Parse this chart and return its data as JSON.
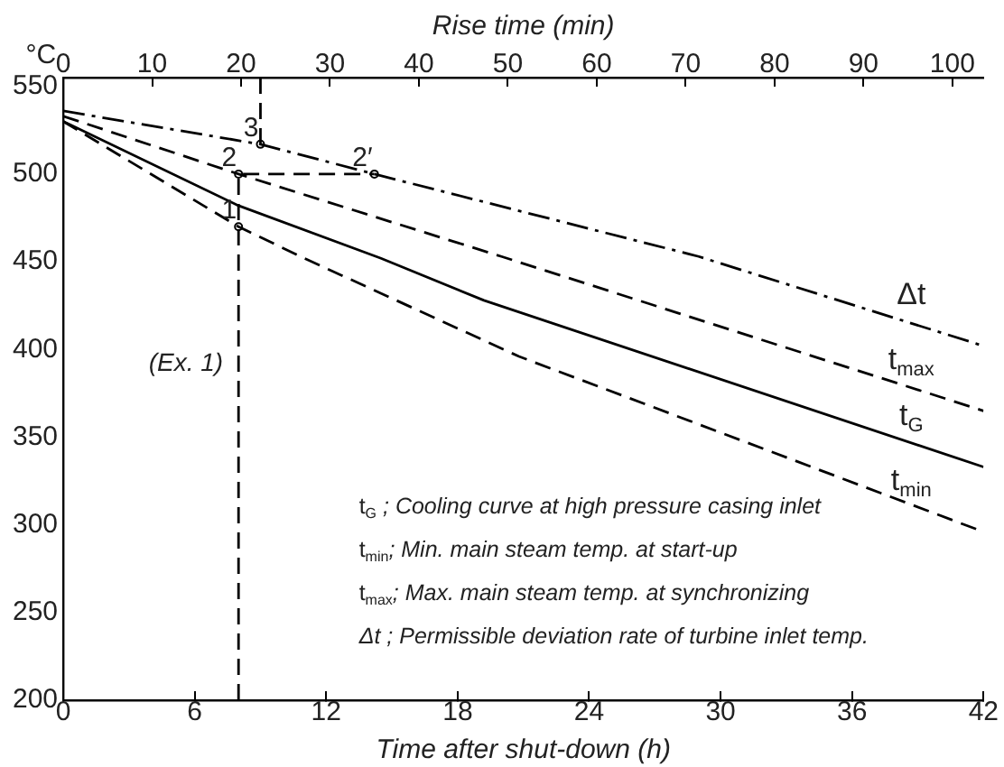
{
  "chart_data": {
    "type": "line",
    "xlabel": "Time after shut-down (h)",
    "ylabel": "°C",
    "x2label": "Rise time (min)",
    "xlim": [
      0,
      42
    ],
    "xticks": [
      0,
      6,
      12,
      18,
      24,
      30,
      36,
      42
    ],
    "ylim": [
      200,
      555
    ],
    "yticks": [
      200,
      250,
      300,
      350,
      400,
      450,
      500,
      550
    ],
    "x2lim": [
      0,
      103.5
    ],
    "x2ticks": [
      0,
      10,
      20,
      30,
      40,
      50,
      60,
      70,
      80,
      90,
      100
    ],
    "grid": false,
    "legend": false,
    "series": [
      {
        "name": "Δt",
        "color": "#000000",
        "line_style": "dashdot",
        "marker": "none",
        "x": [
          0,
          9,
          14.2,
          29,
          42
        ],
        "values": [
          536,
          517,
          500,
          453,
          402
        ]
      },
      {
        "name": "t$_{max}$",
        "color": "#000000",
        "line_style": "dashed",
        "marker": "none",
        "x": [
          0,
          8,
          20,
          42
        ],
        "values": [
          533,
          500,
          453,
          365
        ]
      },
      {
        "name": "t$_{G}$",
        "color": "#000000",
        "line_style": "solid",
        "marker": "none",
        "x": [
          0,
          8,
          14.5,
          19.2,
          42
        ],
        "values": [
          530,
          482,
          452,
          428,
          333
        ]
      },
      {
        "name": "t$_{min}$",
        "color": "#000000",
        "line_style": "dashed",
        "marker": "none",
        "x": [
          0,
          8,
          11,
          20.8,
          42
        ],
        "values": [
          530,
          470,
          452,
          396,
          296
        ]
      },
      {
        "color": "#000000",
        "line_style": "dashed",
        "marker": "none",
        "x": [
          8,
          8,
          14.2
        ],
        "values": [
          200,
          500,
          500
        ]
      },
      {
        "color": "#000000",
        "line_style": "dashed",
        "marker": "none",
        "x": [
          9,
          9
        ],
        "values": [
          555,
          517
        ]
      },
      {
        "type": "scatter",
        "color": "#000000",
        "marker": "circle",
        "x": [
          8,
          8,
          9,
          14.2
        ],
        "values": [
          470,
          500,
          517,
          500
        ]
      }
    ],
    "annotations": [
      {
        "text": "1",
        "x": 8,
        "y": 470
      },
      {
        "text": "2",
        "x": 8,
        "y": 500
      },
      {
        "text": "3",
        "x": 9,
        "y": 517
      },
      {
        "text": "2′",
        "x": 14.2,
        "y": 500
      },
      "(Ex. 1)",
      "t$_{G}$ ; Cooling curve at high pressure casing inlet",
      "t$_{min}$; Min. main steam temp. at start-up",
      "t$_{max}$; Max. main steam temp. at synchronizing",
      "Δt ; Permissible deviation rate of turbine inlet temp."
    ]
  }
}
